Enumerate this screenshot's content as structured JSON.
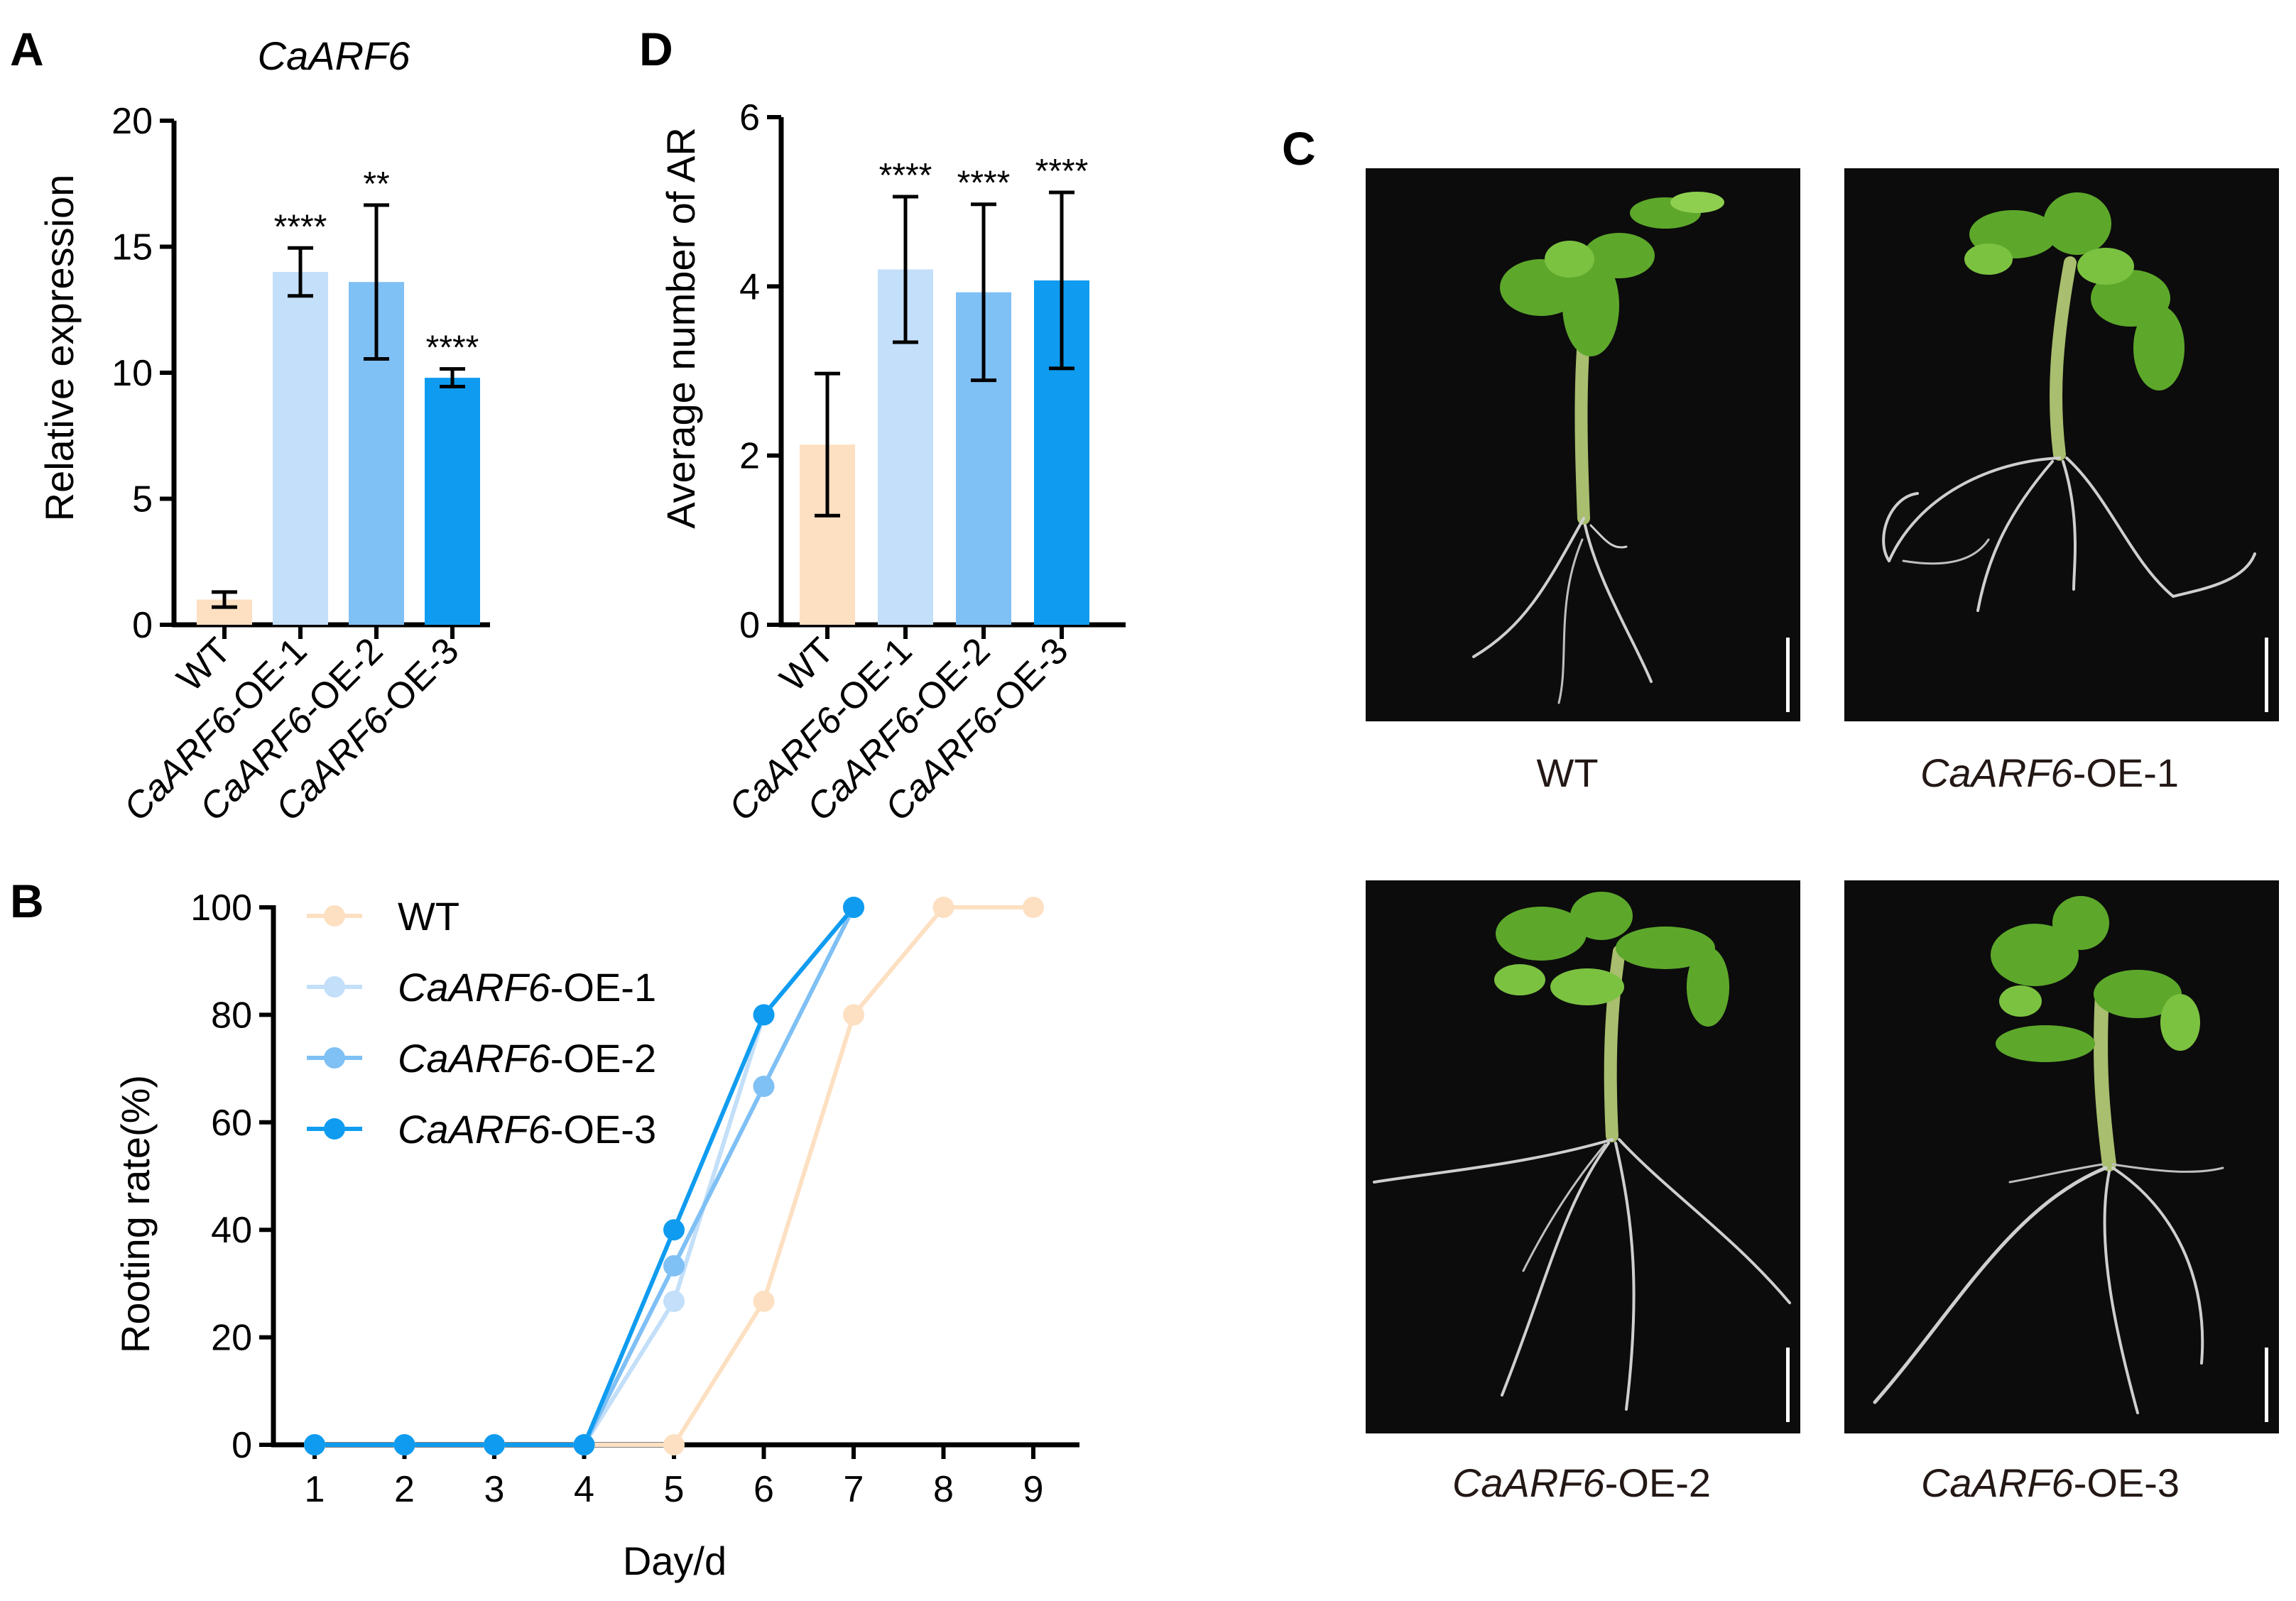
{
  "panels": {
    "A": {
      "label": "A"
    },
    "B": {
      "label": "B"
    },
    "C": {
      "label": "C"
    },
    "D": {
      "label": "D"
    }
  },
  "colors": {
    "WT": "#fde0c2",
    "OE1": "#c3dff9",
    "OE2": "#7fc0f5",
    "OE3": "#0f9cf0"
  },
  "photo_captions": [
    {
      "gene": "",
      "suffix": "WT"
    },
    {
      "gene": "CaARF6",
      "suffix": "-OE-1"
    },
    {
      "gene": "CaARF6",
      "suffix": "-OE-2"
    },
    {
      "gene": "CaARF6",
      "suffix": "-OE-3"
    }
  ],
  "chart_data": [
    {
      "id": "A",
      "type": "bar",
      "title": "CaARF6",
      "ylabel": "Relative expression",
      "xlabel": "",
      "ylim": [
        0,
        20
      ],
      "yticks": [
        0,
        5,
        10,
        15,
        20
      ],
      "categories": [
        {
          "gene": "",
          "suffix": "WT"
        },
        {
          "gene": "CaARF6",
          "suffix": "-OE-1"
        },
        {
          "gene": "CaARF6",
          "suffix": "-OE-2"
        },
        {
          "gene": "CaARF6",
          "suffix": "-OE-3"
        }
      ],
      "values": [
        1.0,
        14.0,
        13.6,
        9.8
      ],
      "errors": [
        0.3,
        0.95,
        3.05,
        0.35
      ],
      "significance": [
        "",
        "****",
        "**",
        "****"
      ]
    },
    {
      "id": "D",
      "type": "bar",
      "title": "",
      "ylabel": "Average number of AR",
      "xlabel": "",
      "ylim": [
        0,
        6
      ],
      "yticks": [
        0,
        2,
        4,
        6
      ],
      "categories": [
        {
          "gene": "",
          "suffix": "WT"
        },
        {
          "gene": "CaARF6",
          "suffix": "-OE-1"
        },
        {
          "gene": "CaARF6",
          "suffix": "-OE-2"
        },
        {
          "gene": "CaARF6",
          "suffix": "-OE-3"
        }
      ],
      "values": [
        2.13,
        4.2,
        3.93,
        4.07
      ],
      "errors": [
        0.84,
        0.86,
        1.04,
        1.04
      ],
      "significance": [
        "",
        "****",
        "****",
        "****"
      ]
    },
    {
      "id": "B",
      "type": "line",
      "title": "",
      "xlabel": "Day/d",
      "ylabel": "Rooting rate(%)",
      "ylim": [
        0,
        100
      ],
      "yticks": [
        0,
        20,
        40,
        60,
        80,
        100
      ],
      "x": [
        1,
        2,
        3,
        4,
        5,
        6,
        7,
        8,
        9
      ],
      "legend_position": "top-left",
      "series": [
        {
          "name": {
            "gene": "",
            "suffix": "WT"
          },
          "x": [
            1,
            2,
            3,
            4,
            5,
            6,
            7,
            8,
            9
          ],
          "values": [
            0,
            0,
            0,
            0,
            0,
            26.7,
            80,
            100,
            100
          ]
        },
        {
          "name": {
            "gene": "CaARF6",
            "suffix": "-OE-1"
          },
          "x": [
            1,
            2,
            3,
            4,
            5,
            6,
            7
          ],
          "values": [
            0,
            0,
            0,
            0,
            26.7,
            80,
            100
          ]
        },
        {
          "name": {
            "gene": "CaARF6",
            "suffix": "-OE-2"
          },
          "x": [
            1,
            2,
            3,
            4,
            5,
            6,
            7
          ],
          "values": [
            0,
            0,
            0,
            0,
            33.3,
            66.7,
            100
          ]
        },
        {
          "name": {
            "gene": "CaARF6",
            "suffix": "-OE-3"
          },
          "x": [
            1,
            2,
            3,
            4,
            5,
            6,
            7
          ],
          "values": [
            0,
            0,
            0,
            0,
            40,
            80,
            100
          ]
        }
      ]
    }
  ]
}
